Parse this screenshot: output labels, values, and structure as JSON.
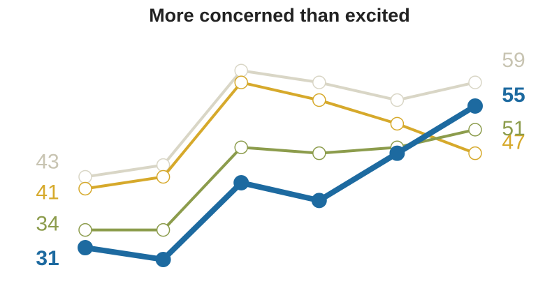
{
  "chart_data": {
    "type": "line",
    "title": "More concerned than excited",
    "categories": [
      null,
      null,
      null,
      null,
      null,
      null
    ],
    "ylim": [
      25,
      65
    ],
    "series": [
      {
        "color": "#d9d6c6",
        "label_color": "#c8c4b2",
        "highlight": false,
        "values": [
          43,
          45,
          61,
          59,
          56,
          59
        ]
      },
      {
        "color": "#d6a92b",
        "label_color": "#d6a92b",
        "highlight": false,
        "values": [
          41,
          43,
          59,
          56,
          52,
          47
        ]
      },
      {
        "color": "#8c9c4c",
        "label_color": "#8c9c4c",
        "highlight": false,
        "values": [
          34,
          34,
          48,
          47,
          48,
          51
        ]
      },
      {
        "color": "#1d6aa0",
        "label_color": "#1d6aa0",
        "highlight": true,
        "values": [
          31,
          29,
          42,
          39,
          47,
          55
        ]
      }
    ]
  }
}
